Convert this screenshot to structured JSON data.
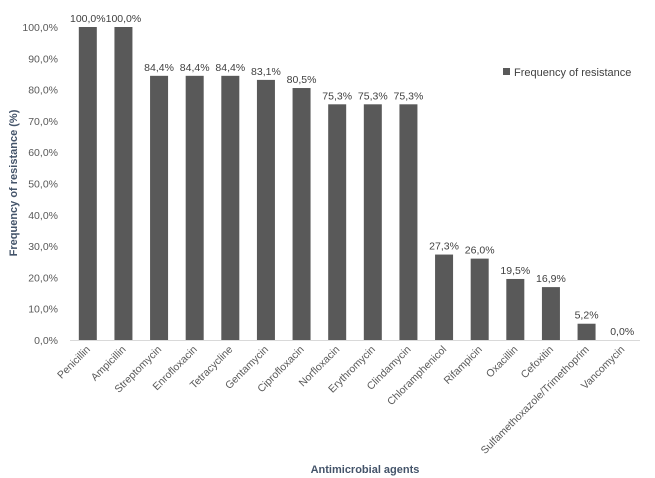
{
  "chart_data": {
    "type": "bar",
    "categories": [
      "Penicillin",
      "Ampicillin",
      "Streptomycin",
      "Enrofloxacin",
      "Tetracycline",
      "Gentamycin",
      "Ciprofloxacin",
      "Norfloxacin",
      "Erythromycin",
      "Clindamycin",
      "Chloramphenicol",
      "Rifampicin",
      "Oxacillin",
      "Cefoxitin",
      "Sulfamethoxazole/Trimethoprim",
      "Vancomycin"
    ],
    "series": [
      {
        "name": "Frequency of resistance",
        "values": [
          100.0,
          100.0,
          84.4,
          84.4,
          84.4,
          83.1,
          80.5,
          75.3,
          75.3,
          75.3,
          27.3,
          26.0,
          19.5,
          16.9,
          5.2,
          0.0
        ]
      }
    ],
    "data_labels": [
      "100,0%",
      "100,0%",
      "84,4%",
      "84,4%",
      "84,4%",
      "83,1%",
      "80,5%",
      "75,3%",
      "75,3%",
      "75,3%",
      "27,3%",
      "26,0%",
      "19,5%",
      "16,9%",
      "5,2%",
      "0,0%"
    ],
    "y_ticks": [
      "0,0%",
      "10,0%",
      "20,0%",
      "30,0%",
      "40,0%",
      "50,0%",
      "60,0%",
      "70,0%",
      "80,0%",
      "90,0%",
      "100,0%"
    ],
    "ylim": [
      0,
      100
    ],
    "xlabel": "Antimicrobial agents",
    "ylabel": "Frequency of resistance (%)",
    "legend_position": "top-right",
    "grid": false,
    "bar_color": "#595959",
    "title": ""
  }
}
